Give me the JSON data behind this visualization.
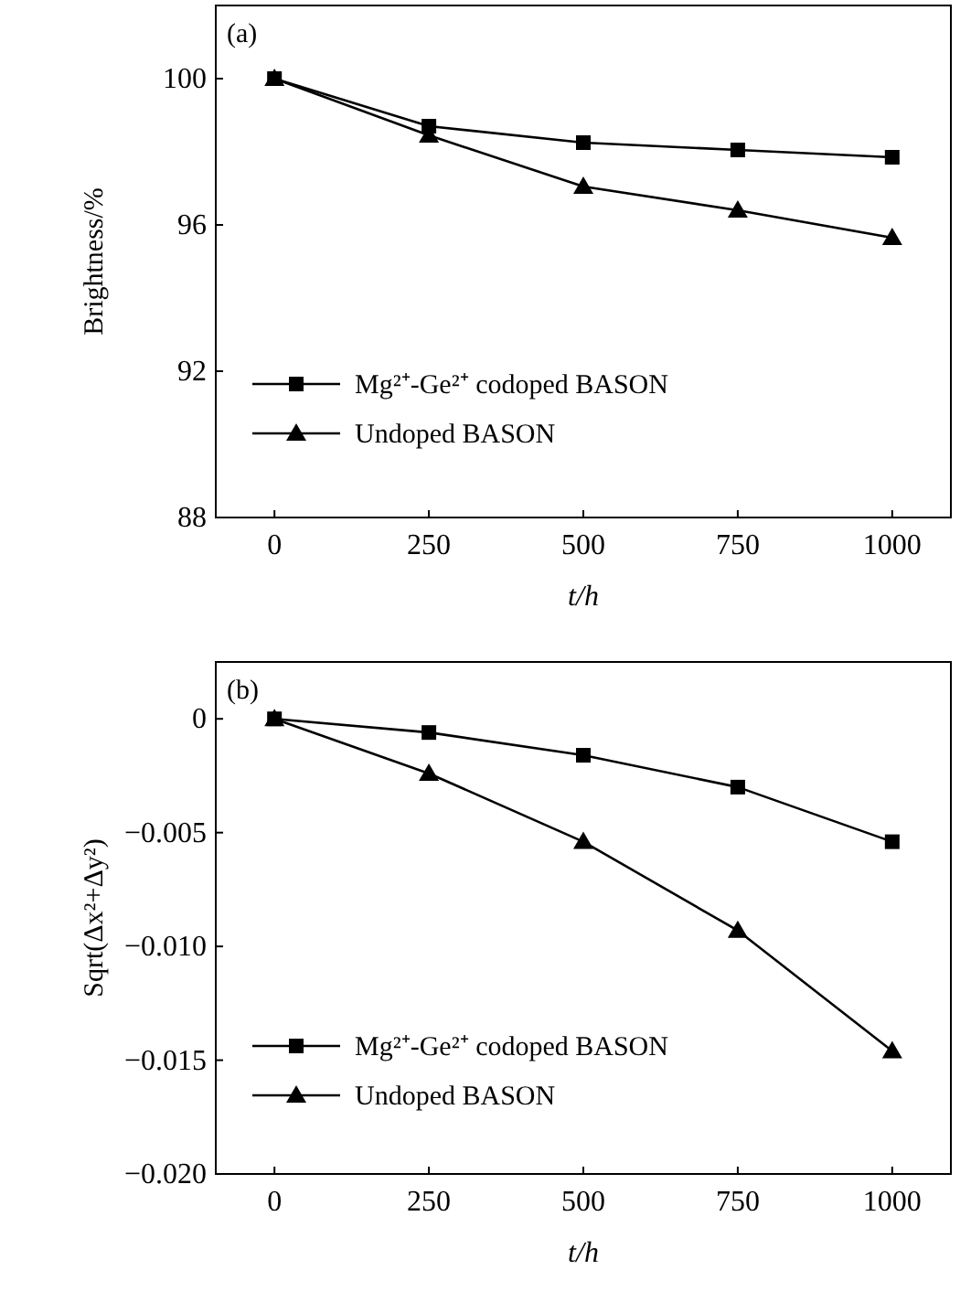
{
  "chart_data": [
    {
      "type": "line",
      "ylabel": "Brightness/%",
      "xlabel": "t/h",
      "annotations": [
        "(a)"
      ],
      "x": [
        0,
        250,
        500,
        750,
        1000
      ],
      "xlim": [
        -95,
        1095
      ],
      "xticks": [
        0,
        250,
        500,
        750,
        1000
      ],
      "ylim": [
        88,
        102
      ],
      "yticks": [
        88,
        92,
        96,
        100
      ],
      "legend": "left",
      "grid": false,
      "line_style": "solid",
      "series": [
        {
          "name": "Mg²⁺-Ge²⁺ codoped BASON",
          "color": "#000000",
          "marker": "square",
          "values": [
            100,
            98.7,
            98.25,
            98.05,
            97.85
          ]
        },
        {
          "name": "Undoped BASON",
          "color": "#000000",
          "marker": "triangle",
          "values": [
            100,
            98.45,
            97.05,
            96.4,
            95.65
          ]
        }
      ]
    },
    {
      "type": "line",
      "ylabel": "Sqrt(Δx²+Δy²)",
      "xlabel": "t/h",
      "annotations": [
        "(b)"
      ],
      "x": [
        0,
        250,
        500,
        750,
        1000
      ],
      "xlim": [
        -95,
        1095
      ],
      "xticks": [
        0,
        250,
        500,
        750,
        1000
      ],
      "ylim": [
        -0.02,
        0.0025
      ],
      "yticks": [
        {
          "value": -0.02,
          "label": "−0.020"
        },
        {
          "value": -0.015,
          "label": "−0.015"
        },
        {
          "value": -0.01,
          "label": "−0.010"
        },
        {
          "value": -0.005,
          "label": "−0.005"
        },
        0
      ],
      "legend": "bottom left",
      "grid": false,
      "line_style": "solid",
      "series": [
        {
          "name": "Mg²⁺-Ge²⁺ codoped BASON",
          "color": "#000000",
          "marker": "square",
          "values": [
            0,
            -0.0006,
            -0.0016,
            -0.003,
            -0.0054
          ]
        },
        {
          "name": "Undoped BASON",
          "color": "#000000",
          "marker": "triangle",
          "values": [
            0,
            -0.0024,
            -0.0054,
            -0.0093,
            -0.0146
          ]
        }
      ]
    }
  ]
}
